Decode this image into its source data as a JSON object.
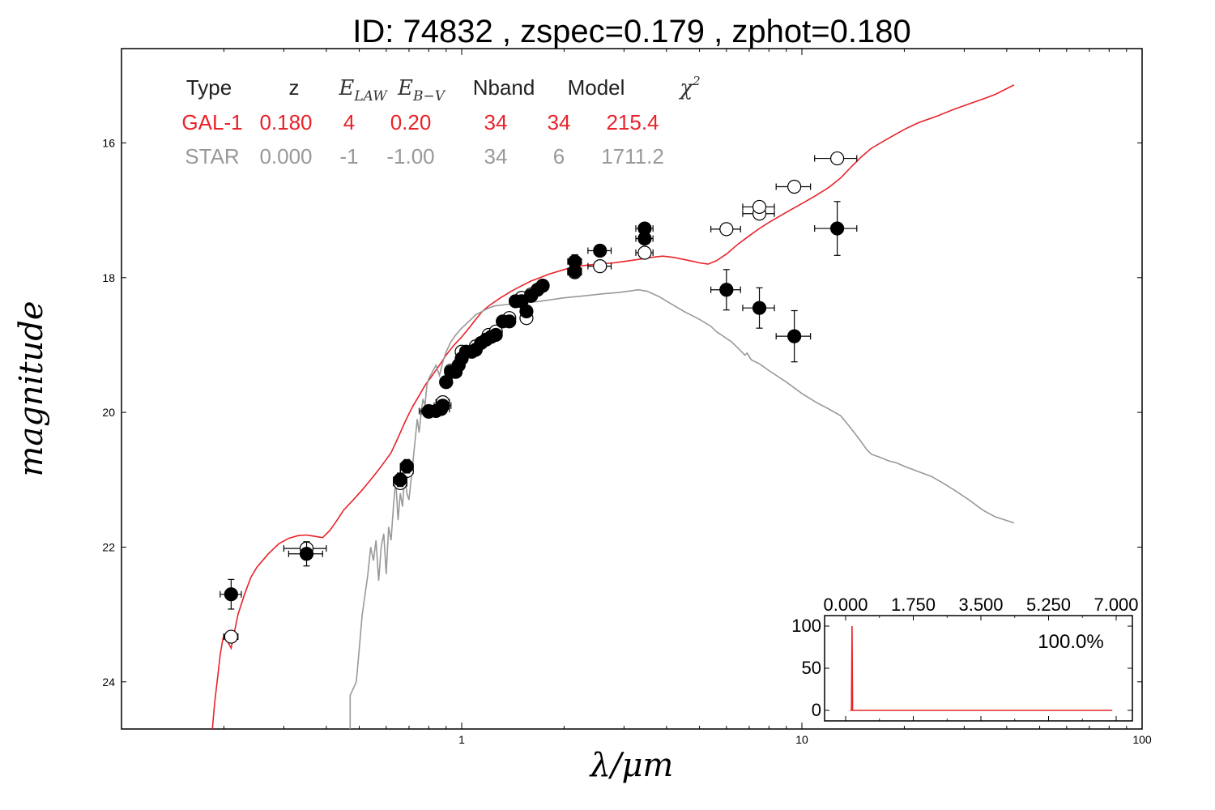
{
  "title": "ID:  74832 , zspec=0.179 , zphot=0.180",
  "colors": {
    "galaxy": "#e8232a",
    "star": "#999999",
    "inset_line": "#e8232a",
    "axes": "#000000"
  },
  "table": {
    "headers": [
      {
        "text": "Type",
        "italic": false
      },
      {
        "text": "z",
        "italic": false
      },
      {
        "text": "E",
        "sub": "LAW",
        "italic": true
      },
      {
        "text": "E",
        "sub": "B−V",
        "italic": true
      },
      {
        "text": "Nband",
        "italic": false
      },
      {
        "text": "Model",
        "italic": false
      },
      {
        "text": "χ",
        "sup": "2",
        "italic": true
      }
    ],
    "rows": [
      {
        "key": "galaxy",
        "cells": [
          "GAL-1",
          "0.180",
          "4",
          "0.20",
          "34",
          "34",
          "215.4"
        ]
      },
      {
        "key": "star",
        "cells": [
          "STAR",
          "0.000",
          "-1",
          "-1.00",
          "34",
          "6",
          "1711.2"
        ]
      }
    ]
  },
  "chart_data": {
    "type": "scatter",
    "xlabel": "λ/μm",
    "ylabel": "magnitude",
    "xscale": "log",
    "xlim": [
      0.1,
      100
    ],
    "ylim": [
      24.7,
      14.6
    ],
    "yticks": [
      16,
      18,
      20,
      22,
      24
    ],
    "xticks": [
      1,
      10,
      100
    ],
    "series": [
      {
        "key": "gal_model",
        "kind": "line",
        "points": [
          [
            0.185,
            24.7
          ],
          [
            0.188,
            24.3
          ],
          [
            0.192,
            23.9
          ],
          [
            0.195,
            23.6
          ],
          [
            0.198,
            23.4
          ],
          [
            0.2,
            23.3
          ],
          [
            0.205,
            23.4
          ],
          [
            0.21,
            23.5
          ],
          [
            0.22,
            23.0
          ],
          [
            0.23,
            22.7
          ],
          [
            0.24,
            22.45
          ],
          [
            0.25,
            22.3
          ],
          [
            0.27,
            22.1
          ],
          [
            0.29,
            21.95
          ],
          [
            0.31,
            21.87
          ],
          [
            0.33,
            21.83
          ],
          [
            0.35,
            21.82
          ],
          [
            0.37,
            21.84
          ],
          [
            0.39,
            21.86
          ],
          [
            0.41,
            21.75
          ],
          [
            0.43,
            21.6
          ],
          [
            0.45,
            21.45
          ],
          [
            0.48,
            21.3
          ],
          [
            0.51,
            21.15
          ],
          [
            0.53,
            21.05
          ],
          [
            0.55,
            20.95
          ],
          [
            0.57,
            20.85
          ],
          [
            0.6,
            20.7
          ],
          [
            0.62,
            20.6
          ],
          [
            0.64,
            20.45
          ],
          [
            0.66,
            20.3
          ],
          [
            0.68,
            20.15
          ],
          [
            0.7,
            20.02
          ],
          [
            0.72,
            19.9
          ],
          [
            0.75,
            19.75
          ],
          [
            0.78,
            19.6
          ],
          [
            0.82,
            19.45
          ],
          [
            0.86,
            19.3
          ],
          [
            0.9,
            19.15
          ],
          [
            0.95,
            19.0
          ],
          [
            1.0,
            18.88
          ],
          [
            1.05,
            18.75
          ],
          [
            1.1,
            18.62
          ],
          [
            1.15,
            18.5
          ],
          [
            1.2,
            18.42
          ],
          [
            1.3,
            18.3
          ],
          [
            1.4,
            18.2
          ],
          [
            1.5,
            18.12
          ],
          [
            1.6,
            18.05
          ],
          [
            1.7,
            18.0
          ],
          [
            1.8,
            17.95
          ],
          [
            2.0,
            17.88
          ],
          [
            2.2,
            17.83
          ],
          [
            2.5,
            17.8
          ],
          [
            2.8,
            17.78
          ],
          [
            3.0,
            17.76
          ],
          [
            3.3,
            17.73
          ],
          [
            3.6,
            17.7
          ],
          [
            3.9,
            17.68
          ],
          [
            4.2,
            17.7
          ],
          [
            4.5,
            17.73
          ],
          [
            4.8,
            17.76
          ],
          [
            5.0,
            17.78
          ],
          [
            5.3,
            17.8
          ],
          [
            5.6,
            17.75
          ],
          [
            6.0,
            17.65
          ],
          [
            6.5,
            17.5
          ],
          [
            7.0,
            17.38
          ],
          [
            7.5,
            17.27
          ],
          [
            8.0,
            17.18
          ],
          [
            9.0,
            17.03
          ],
          [
            10.0,
            16.9
          ],
          [
            11.0,
            16.78
          ],
          [
            12.0,
            16.66
          ],
          [
            13.0,
            16.52
          ],
          [
            14.0,
            16.35
          ],
          [
            15.0,
            16.2
          ],
          [
            16.0,
            16.08
          ],
          [
            18.0,
            15.93
          ],
          [
            20.0,
            15.8
          ],
          [
            22.0,
            15.7
          ],
          [
            25.0,
            15.6
          ],
          [
            28.0,
            15.5
          ],
          [
            31.0,
            15.42
          ],
          [
            34.0,
            15.35
          ],
          [
            37.0,
            15.28
          ],
          [
            42.0,
            15.14
          ]
        ]
      },
      {
        "key": "star_model",
        "kind": "line",
        "points": [
          [
            0.47,
            24.7
          ],
          [
            0.47,
            24.2
          ],
          [
            0.49,
            24.0
          ],
          [
            0.5,
            23.5
          ],
          [
            0.51,
            23.0
          ],
          [
            0.52,
            22.7
          ],
          [
            0.53,
            22.4
          ],
          [
            0.54,
            22.0
          ],
          [
            0.55,
            22.2
          ],
          [
            0.56,
            21.9
          ],
          [
            0.57,
            22.5
          ],
          [
            0.58,
            22.0
          ],
          [
            0.59,
            21.8
          ],
          [
            0.6,
            22.4
          ],
          [
            0.61,
            21.7
          ],
          [
            0.62,
            21.9
          ],
          [
            0.63,
            21.4
          ],
          [
            0.64,
            21.0
          ],
          [
            0.65,
            21.6
          ],
          [
            0.66,
            21.2
          ],
          [
            0.67,
            21.4
          ],
          [
            0.68,
            20.9
          ],
          [
            0.69,
            21.2
          ],
          [
            0.7,
            21.3
          ],
          [
            0.71,
            21.0
          ],
          [
            0.72,
            20.7
          ],
          [
            0.73,
            20.4
          ],
          [
            0.74,
            20.1
          ],
          [
            0.75,
            20.3
          ],
          [
            0.76,
            20.0
          ],
          [
            0.77,
            19.8
          ],
          [
            0.78,
            19.9
          ],
          [
            0.79,
            19.6
          ],
          [
            0.8,
            19.5
          ],
          [
            0.82,
            19.4
          ],
          [
            0.84,
            19.3
          ],
          [
            0.86,
            19.45
          ],
          [
            0.88,
            19.25
          ],
          [
            0.9,
            19.1
          ],
          [
            0.93,
            18.95
          ],
          [
            0.96,
            18.85
          ],
          [
            1.0,
            18.75
          ],
          [
            1.05,
            18.65
          ],
          [
            1.1,
            18.55
          ],
          [
            1.15,
            18.5
          ],
          [
            1.2,
            18.45
          ],
          [
            1.25,
            18.42
          ],
          [
            1.35,
            18.4
          ],
          [
            1.5,
            18.38
          ],
          [
            1.7,
            18.35
          ],
          [
            2.0,
            18.3
          ],
          [
            2.3,
            18.27
          ],
          [
            2.6,
            18.24
          ],
          [
            2.9,
            18.22
          ],
          [
            3.1,
            18.2
          ],
          [
            3.3,
            18.18
          ],
          [
            3.5,
            18.2
          ],
          [
            3.8,
            18.28
          ],
          [
            4.1,
            18.38
          ],
          [
            4.5,
            18.5
          ],
          [
            5.0,
            18.62
          ],
          [
            5.4,
            18.72
          ],
          [
            5.6,
            18.8
          ],
          [
            5.8,
            18.85
          ],
          [
            6.2,
            18.95
          ],
          [
            6.5,
            19.05
          ],
          [
            6.8,
            19.15
          ],
          [
            6.9,
            19.12
          ],
          [
            7.1,
            19.22
          ],
          [
            7.5,
            19.28
          ],
          [
            8.0,
            19.38
          ],
          [
            9.0,
            19.55
          ],
          [
            10.0,
            19.72
          ],
          [
            11.0,
            19.85
          ],
          [
            12.0,
            19.95
          ],
          [
            13.0,
            20.05
          ],
          [
            13.5,
            20.15
          ],
          [
            14.0,
            20.25
          ],
          [
            14.5,
            20.35
          ],
          [
            15.0,
            20.45
          ],
          [
            15.5,
            20.55
          ],
          [
            16.0,
            20.62
          ],
          [
            17.0,
            20.67
          ],
          [
            18.0,
            20.72
          ],
          [
            19.0,
            20.75
          ],
          [
            20.0,
            20.8
          ],
          [
            22.0,
            20.88
          ],
          [
            24.0,
            20.95
          ],
          [
            26.0,
            21.05
          ],
          [
            28.0,
            21.15
          ],
          [
            31.0,
            21.3
          ],
          [
            34.0,
            21.45
          ],
          [
            37.0,
            21.55
          ],
          [
            42.0,
            21.64
          ]
        ]
      },
      {
        "key": "observed",
        "kind": "points",
        "filled": true,
        "points": [
          [
            0.21,
            22.7,
            0.015,
            0.22
          ],
          [
            0.35,
            22.1,
            0.04,
            0.18
          ],
          [
            0.66,
            21.0,
            0.03,
            0.1
          ],
          [
            0.69,
            20.8,
            0.03,
            0.1
          ],
          [
            0.8,
            19.98,
            0.05,
            0.05
          ],
          [
            0.84,
            19.98,
            0.05,
            0.05
          ],
          [
            0.87,
            19.95,
            0.05,
            0.05
          ],
          [
            0.88,
            19.9,
            0.05,
            0.05
          ],
          [
            0.9,
            19.55,
            0.03,
            0.05
          ],
          [
            0.93,
            19.4,
            0.03,
            0.05
          ],
          [
            0.96,
            19.4,
            0.03,
            0.05
          ],
          [
            0.98,
            19.3,
            0.03,
            0.05
          ],
          [
            1.0,
            19.2,
            0.03,
            0.05
          ],
          [
            1.03,
            19.1,
            0.03,
            0.05
          ],
          [
            1.07,
            19.1,
            0.03,
            0.05
          ],
          [
            1.1,
            19.07,
            0.03,
            0.05
          ],
          [
            1.14,
            18.97,
            0.03,
            0.05
          ],
          [
            1.18,
            18.92,
            0.03,
            0.05
          ],
          [
            1.22,
            18.88,
            0.03,
            0.05
          ],
          [
            1.26,
            18.85,
            0.03,
            0.05
          ],
          [
            1.32,
            18.65,
            0.03,
            0.05
          ],
          [
            1.38,
            18.65,
            0.03,
            0.05
          ],
          [
            1.44,
            18.35,
            0.03,
            0.05
          ],
          [
            1.5,
            18.35,
            0.03,
            0.05
          ],
          [
            1.55,
            18.5,
            0.03,
            0.05
          ],
          [
            1.6,
            18.27,
            0.03,
            0.05
          ],
          [
            1.67,
            18.18,
            0.03,
            0.05
          ],
          [
            1.73,
            18.12,
            0.03,
            0.05
          ],
          [
            2.15,
            17.76,
            0.1,
            0.1
          ],
          [
            2.15,
            17.9,
            0.1,
            0.1
          ],
          [
            2.55,
            17.6,
            0.2,
            0.05
          ],
          [
            3.45,
            17.27,
            0.2,
            0.08
          ],
          [
            3.45,
            17.42,
            0.2,
            0.08
          ],
          [
            6.0,
            18.18,
            0.6,
            0.3
          ],
          [
            7.5,
            18.45,
            0.8,
            0.3
          ],
          [
            9.5,
            18.87,
            1.1,
            0.38
          ],
          [
            12.7,
            17.27,
            1.8,
            0.4
          ]
        ]
      },
      {
        "key": "model_mags",
        "kind": "points",
        "filled": false,
        "points": [
          [
            0.21,
            23.33,
            0.01,
            0
          ],
          [
            0.35,
            22.02,
            0.05,
            0
          ],
          [
            0.66,
            21.05,
            0.03,
            0
          ],
          [
            0.69,
            20.87,
            0.03,
            0
          ],
          [
            0.8,
            19.99,
            0.04,
            0
          ],
          [
            0.88,
            19.85,
            0.04,
            0
          ],
          [
            0.9,
            19.55,
            0.03,
            0
          ],
          [
            0.93,
            19.38,
            0.03,
            0
          ],
          [
            1.0,
            19.1,
            0.03,
            0
          ],
          [
            1.1,
            19.02,
            0.03,
            0
          ],
          [
            1.2,
            18.85,
            0.03,
            0
          ],
          [
            1.26,
            18.8,
            0.03,
            0
          ],
          [
            1.38,
            18.6,
            0.03,
            0
          ],
          [
            1.5,
            18.3,
            0.03,
            0
          ],
          [
            1.55,
            18.6,
            0.03,
            0
          ],
          [
            1.6,
            18.25,
            0.03,
            0
          ],
          [
            1.73,
            18.12,
            0.03,
            0
          ],
          [
            2.15,
            17.92,
            0.1,
            0
          ],
          [
            2.55,
            17.83,
            0.2,
            0
          ],
          [
            3.45,
            17.63,
            0.2,
            0
          ],
          [
            6.0,
            17.28,
            0.6,
            0
          ],
          [
            7.5,
            17.05,
            0.8,
            0
          ],
          [
            7.5,
            16.95,
            0.8,
            0
          ],
          [
            9.5,
            16.65,
            1.1,
            0
          ],
          [
            12.7,
            16.23,
            1.8,
            0
          ]
        ]
      }
    ],
    "inset": {
      "type": "line",
      "xlim": [
        0,
        7
      ],
      "ylim": [
        0,
        100
      ],
      "xticks": [
        "0.000",
        "1.750",
        "3.500",
        "5.250",
        "7.000"
      ],
      "yticks": [
        "100",
        "50",
        "0"
      ],
      "annotation": "100.0%",
      "points": [
        [
          0.12,
          0
        ],
        [
          0.15,
          0
        ],
        [
          0.165,
          100
        ],
        [
          0.18,
          0
        ],
        [
          0.195,
          0
        ],
        [
          6.9,
          0
        ]
      ]
    }
  }
}
